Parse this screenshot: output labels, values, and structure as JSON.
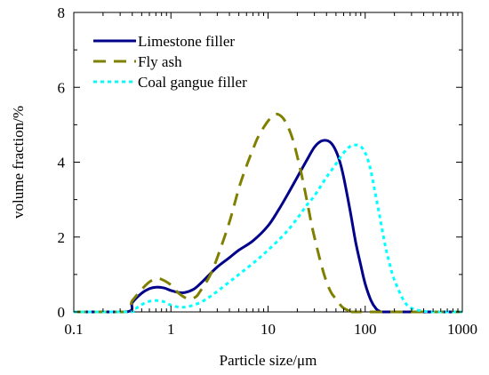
{
  "chart_data": {
    "type": "line",
    "title": "",
    "xlabel": "Particle size/μm",
    "ylabel": "volume fraction/%",
    "xscale": "log",
    "xlim": [
      0.1,
      1000
    ],
    "ylim": [
      0,
      8
    ],
    "xticks": [
      "0.1",
      "1",
      "10",
      "100",
      "1000"
    ],
    "yticks": [
      "0",
      "2",
      "4",
      "6",
      "8"
    ],
    "grid": false,
    "legend_position": "top-left",
    "series": [
      {
        "name": "Limestone filler",
        "color": "#00008B",
        "style": "solid",
        "x": [
          0.1,
          0.35,
          0.4,
          0.5,
          0.6,
          0.7,
          0.85,
          1.0,
          1.2,
          1.4,
          1.7,
          2.0,
          2.5,
          3.0,
          4.0,
          5.0,
          7.0,
          10,
          13,
          16,
          20,
          25,
          30,
          35,
          40,
          45,
          50,
          55,
          60,
          70,
          80,
          90,
          100,
          115,
          130,
          145,
          150,
          200,
          1000
        ],
        "y": [
          0,
          0,
          0.25,
          0.5,
          0.62,
          0.66,
          0.64,
          0.57,
          0.52,
          0.52,
          0.6,
          0.75,
          1.0,
          1.2,
          1.45,
          1.65,
          1.9,
          2.3,
          2.75,
          3.15,
          3.6,
          4.05,
          4.4,
          4.56,
          4.58,
          4.5,
          4.3,
          4.0,
          3.6,
          2.7,
          1.85,
          1.25,
          0.75,
          0.3,
          0.08,
          0.0,
          0,
          0,
          0
        ]
      },
      {
        "name": "Fly ash",
        "color": "#808000",
        "style": "dashed",
        "x": [
          0.1,
          0.33,
          0.4,
          0.5,
          0.6,
          0.7,
          0.8,
          1.0,
          1.2,
          1.5,
          1.8,
          2.0,
          2.5,
          3.0,
          4.0,
          5.0,
          6.0,
          7.0,
          8.0,
          10,
          12,
          14,
          16,
          18,
          20,
          22,
          25,
          28,
          30,
          35,
          40,
          45,
          50,
          55,
          60,
          70,
          80,
          90,
          1000
        ],
        "y": [
          0,
          0,
          0.3,
          0.6,
          0.8,
          0.88,
          0.87,
          0.72,
          0.5,
          0.35,
          0.4,
          0.55,
          0.95,
          1.45,
          2.4,
          3.3,
          3.9,
          4.35,
          4.7,
          5.1,
          5.28,
          5.2,
          4.95,
          4.6,
          4.15,
          3.7,
          3.0,
          2.35,
          2.0,
          1.3,
          0.8,
          0.5,
          0.35,
          0.2,
          0.1,
          0.02,
          0,
          0,
          0
        ]
      },
      {
        "name": "Coal gangue filler",
        "color": "#00FFFF",
        "style": "dotted",
        "x": [
          0.1,
          0.38,
          0.45,
          0.55,
          0.65,
          0.75,
          0.85,
          1.0,
          1.2,
          1.5,
          2.0,
          2.5,
          3.0,
          4.0,
          5.0,
          7.0,
          10,
          15,
          20,
          25,
          30,
          40,
          50,
          60,
          70,
          80,
          90,
          100,
          110,
          120,
          140,
          160,
          180,
          200,
          250,
          300,
          400,
          500,
          1000
        ],
        "y": [
          0,
          0,
          0.12,
          0.25,
          0.3,
          0.3,
          0.27,
          0.18,
          0.13,
          0.14,
          0.25,
          0.4,
          0.55,
          0.8,
          1.0,
          1.3,
          1.65,
          2.1,
          2.5,
          2.85,
          3.1,
          3.6,
          3.95,
          4.25,
          4.42,
          4.46,
          4.42,
          4.25,
          3.95,
          3.5,
          2.6,
          1.8,
          1.25,
          0.85,
          0.3,
          0.1,
          0.02,
          0,
          0
        ]
      }
    ]
  }
}
